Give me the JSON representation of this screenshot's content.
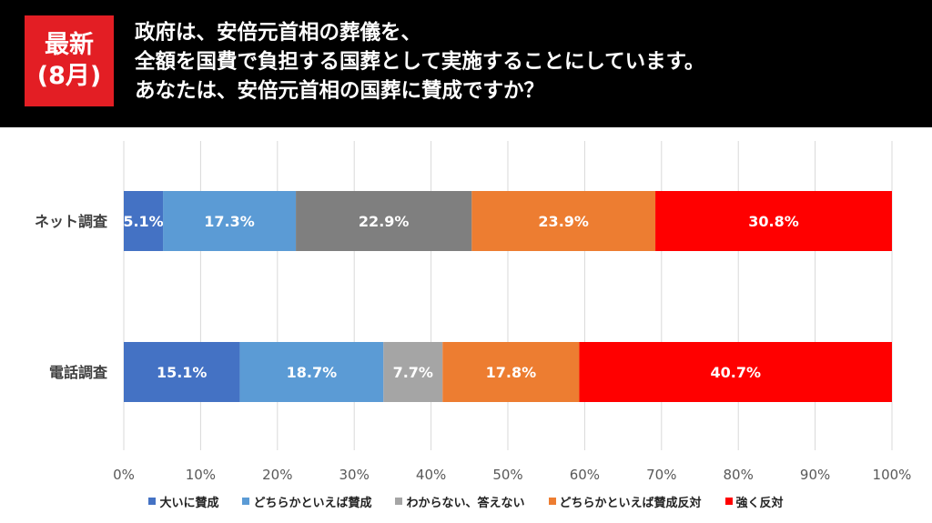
{
  "header": {
    "badge_line1": "最新",
    "badge_line2": "(8月)",
    "question_lines": [
      "政府は、安倍元首相の葬儀を、",
      "全額を国費で負担する国葬として実施することにしています。",
      "あなたは、安倍元首相の国葬に賛成ですか？"
    ]
  },
  "chart_data": {
    "type": "bar",
    "orientation": "horizontal",
    "stacked": true,
    "categories": [
      "ネット調査",
      "電話調査"
    ],
    "series": [
      {
        "name": "大いに賛成",
        "values": [
          5.1,
          15.1
        ],
        "color": "#4472c4"
      },
      {
        "name": "どちらかといえば賛成",
        "values": [
          17.3,
          18.7
        ],
        "color": "#5b9bd5"
      },
      {
        "name": "わからない、答えない",
        "values": [
          22.9,
          7.7
        ],
        "color_row0": "#7f7f7f",
        "color": "#a5a5a5"
      },
      {
        "name": "どちらかといえば賛成反対",
        "values": [
          23.9,
          17.8
        ],
        "color": "#ed7d31"
      },
      {
        "name": "強く反対",
        "values": [
          30.8,
          40.7
        ],
        "color": "#ff0000"
      }
    ],
    "x_ticks": [
      "0%",
      "10%",
      "20%",
      "30%",
      "40%",
      "50%",
      "60%",
      "70%",
      "80%",
      "90%",
      "100%"
    ],
    "xlim": [
      0,
      100
    ],
    "grid": true,
    "legend_position": "bottom",
    "label_suffix": "%"
  }
}
